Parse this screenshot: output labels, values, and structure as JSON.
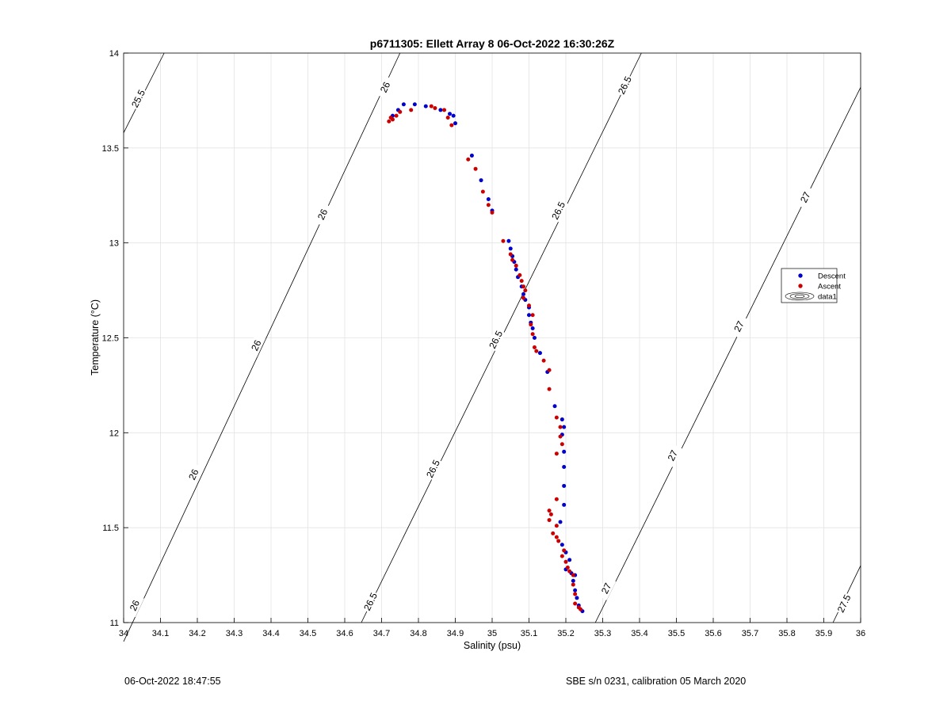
{
  "chart_data": {
    "type": "scatter",
    "title": "p6711305: Ellett Array 8 06-Oct-2022 16:30:26Z",
    "xlabel": "Salinity (psu)",
    "ylabel": "Temperature (°C)",
    "xlim": [
      34,
      36
    ],
    "ylim": [
      11,
      14
    ],
    "xticks": [
      34,
      34.1,
      34.2,
      34.3,
      34.4,
      34.5,
      34.6,
      34.7,
      34.8,
      34.9,
      35,
      35.1,
      35.2,
      35.3,
      35.4,
      35.5,
      35.6,
      35.7,
      35.8,
      35.9,
      36
    ],
    "xtick_labels": [
      "34",
      "34.1",
      "34.2",
      "34.3",
      "34.4",
      "34.5",
      "34.6",
      "34.7",
      "34.8",
      "34.9",
      "35",
      "35.1",
      "35.2",
      "35.3",
      "35.4",
      "35.5",
      "35.6",
      "35.7",
      "35.8",
      "35.9",
      "36"
    ],
    "yticks": [
      11,
      11.5,
      12,
      12.5,
      13,
      13.5,
      14
    ],
    "ytick_labels": [
      "11",
      "11.5",
      "12",
      "12.5",
      "13",
      "13.5",
      "14"
    ],
    "grid": true,
    "legend": {
      "placement": "right",
      "entries": [
        "Descent",
        "Ascent",
        "data1"
      ]
    },
    "contours": [
      {
        "level": "25.5",
        "points": [
          [
            34.0,
            13.58
          ],
          [
            34.11,
            14.0
          ]
        ],
        "labels": [
          [
            34.04,
            13.76
          ]
        ]
      },
      {
        "level": "26",
        "points": [
          [
            34.0,
            10.9
          ],
          [
            34.75,
            14.0
          ]
        ],
        "labels": [
          [
            34.03,
            11.09
          ],
          [
            34.19,
            11.78
          ],
          [
            34.36,
            12.46
          ],
          [
            34.54,
            13.15
          ],
          [
            34.71,
            13.82
          ]
        ]
      },
      {
        "level": "26.5",
        "points": [
          [
            34.645,
            11.0
          ],
          [
            35.405,
            14.0
          ]
        ],
        "labels": [
          [
            34.67,
            11.11
          ],
          [
            34.84,
            11.81
          ],
          [
            35.01,
            12.49
          ],
          [
            35.18,
            13.17
          ],
          [
            35.36,
            13.83
          ]
        ]
      },
      {
        "level": "27",
        "points": [
          [
            35.28,
            11.0
          ],
          [
            36.0,
            13.82
          ]
        ],
        "labels": [
          [
            35.31,
            11.18
          ],
          [
            35.49,
            11.88
          ],
          [
            35.67,
            12.56
          ],
          [
            35.85,
            13.24
          ]
        ]
      },
      {
        "level": "27.5",
        "points": [
          [
            35.925,
            11.0
          ],
          [
            36.0,
            11.3
          ]
        ],
        "labels": [
          [
            35.955,
            11.1
          ]
        ]
      }
    ],
    "series": [
      {
        "name": "Descent",
        "color": "#0000cc",
        "points": [
          [
            34.73,
            13.67
          ],
          [
            34.745,
            13.7
          ],
          [
            34.76,
            13.73
          ],
          [
            34.79,
            13.73
          ],
          [
            34.82,
            13.72
          ],
          [
            34.86,
            13.7
          ],
          [
            34.885,
            13.68
          ],
          [
            34.895,
            13.67
          ],
          [
            34.9,
            13.63
          ],
          [
            34.945,
            13.46
          ],
          [
            34.97,
            13.33
          ],
          [
            34.99,
            13.23
          ],
          [
            35.0,
            13.17
          ],
          [
            35.045,
            13.01
          ],
          [
            35.05,
            12.97
          ],
          [
            35.055,
            12.93
          ],
          [
            35.06,
            12.9
          ],
          [
            35.065,
            12.86
          ],
          [
            35.07,
            12.82
          ],
          [
            35.08,
            12.77
          ],
          [
            35.085,
            12.73
          ],
          [
            35.09,
            12.7
          ],
          [
            35.1,
            12.66
          ],
          [
            35.1,
            12.62
          ],
          [
            35.105,
            12.58
          ],
          [
            35.11,
            12.55
          ],
          [
            35.115,
            12.5
          ],
          [
            35.13,
            12.42
          ],
          [
            35.15,
            12.32
          ],
          [
            35.17,
            12.14
          ],
          [
            35.19,
            12.07
          ],
          [
            35.195,
            12.03
          ],
          [
            35.19,
            11.99
          ],
          [
            35.195,
            11.9
          ],
          [
            35.195,
            11.82
          ],
          [
            35.195,
            11.72
          ],
          [
            35.195,
            11.62
          ],
          [
            35.185,
            11.53
          ],
          [
            35.19,
            11.41
          ],
          [
            35.2,
            11.37
          ],
          [
            35.21,
            11.33
          ],
          [
            35.2,
            11.28
          ],
          [
            35.215,
            11.26
          ],
          [
            35.225,
            11.25
          ],
          [
            35.22,
            11.22
          ],
          [
            35.225,
            11.17
          ],
          [
            35.23,
            11.13
          ],
          [
            35.235,
            11.09
          ],
          [
            35.245,
            11.06
          ]
        ]
      },
      {
        "name": "Ascent",
        "color": "#cc0000",
        "points": [
          [
            34.72,
            13.64
          ],
          [
            34.725,
            13.66
          ],
          [
            34.73,
            13.65
          ],
          [
            34.74,
            13.67
          ],
          [
            34.75,
            13.69
          ],
          [
            34.78,
            13.7
          ],
          [
            34.835,
            13.72
          ],
          [
            34.845,
            13.71
          ],
          [
            34.87,
            13.7
          ],
          [
            34.88,
            13.66
          ],
          [
            34.89,
            13.62
          ],
          [
            34.935,
            13.44
          ],
          [
            34.955,
            13.39
          ],
          [
            34.975,
            13.27
          ],
          [
            34.99,
            13.2
          ],
          [
            35.0,
            13.16
          ],
          [
            35.03,
            13.01
          ],
          [
            35.05,
            12.94
          ],
          [
            35.055,
            12.91
          ],
          [
            35.065,
            12.88
          ],
          [
            35.075,
            12.83
          ],
          [
            35.08,
            12.8
          ],
          [
            35.085,
            12.77
          ],
          [
            35.09,
            12.75
          ],
          [
            35.085,
            12.71
          ],
          [
            35.1,
            12.67
          ],
          [
            35.11,
            12.62
          ],
          [
            35.105,
            12.57
          ],
          [
            35.11,
            12.52
          ],
          [
            35.115,
            12.45
          ],
          [
            35.12,
            12.43
          ],
          [
            35.14,
            12.38
          ],
          [
            35.155,
            12.33
          ],
          [
            35.155,
            12.23
          ],
          [
            35.175,
            12.08
          ],
          [
            35.185,
            12.03
          ],
          [
            35.185,
            11.98
          ],
          [
            35.19,
            11.94
          ],
          [
            35.175,
            11.89
          ],
          [
            35.175,
            11.65
          ],
          [
            35.155,
            11.59
          ],
          [
            35.16,
            11.57
          ],
          [
            35.155,
            11.54
          ],
          [
            35.175,
            11.51
          ],
          [
            35.165,
            11.47
          ],
          [
            35.175,
            11.45
          ],
          [
            35.18,
            11.43
          ],
          [
            35.195,
            11.38
          ],
          [
            35.19,
            11.35
          ],
          [
            35.2,
            11.32
          ],
          [
            35.205,
            11.29
          ],
          [
            35.21,
            11.27
          ],
          [
            35.22,
            11.25
          ],
          [
            35.22,
            11.2
          ],
          [
            35.225,
            11.15
          ],
          [
            35.225,
            11.1
          ],
          [
            35.235,
            11.08
          ],
          [
            35.24,
            11.07
          ]
        ]
      }
    ]
  },
  "footer": {
    "left": "06-Oct-2022 18:47:55",
    "right": "SBE s/n 0231, calibration 05 March 2020"
  }
}
